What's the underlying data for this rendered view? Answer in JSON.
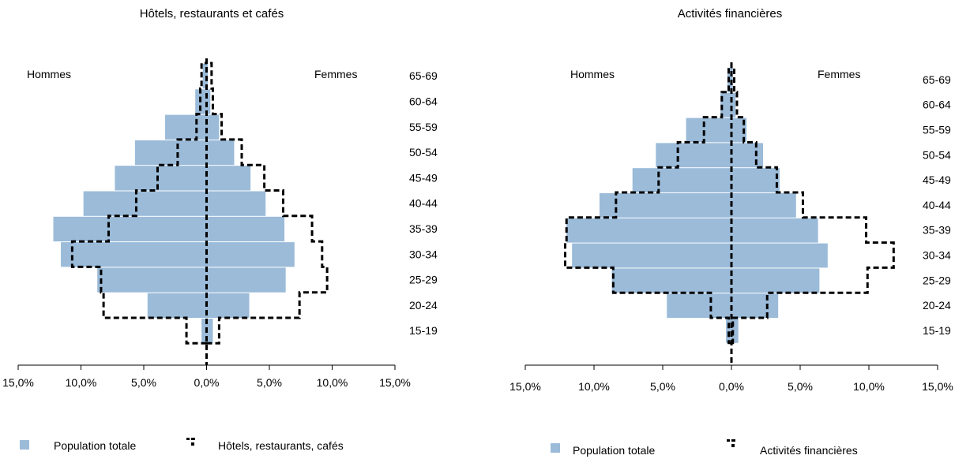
{
  "colors": {
    "population_fill": "#9bbbd9",
    "subgroup_stroke": "#000000"
  },
  "chart_data": [
    {
      "type": "bar",
      "subtype": "population-pyramid",
      "title": "Hôtels, restaurants et cafés",
      "left_label": "Hommes",
      "right_label": "Femmes",
      "categories": [
        "15-19",
        "20-24",
        "25-29",
        "30-34",
        "35-39",
        "40-44",
        "45-49",
        "50-54",
        "55-59",
        "60-64",
        "65-69"
      ],
      "x_tick_labels": [
        "15,0%",
        "10,0%",
        "5,0%",
        "0,0%",
        "5,0%",
        "10,0%",
        "15,0%"
      ],
      "xlim": [
        -15,
        15
      ],
      "units": "%",
      "series": [
        {
          "name": "Population totale",
          "style": "filled",
          "men": [
            0.4,
            4.7,
            8.7,
            11.6,
            12.2,
            9.8,
            7.3,
            5.7,
            3.3,
            0.9,
            0.3
          ],
          "women": [
            0.5,
            3.4,
            6.3,
            7.0,
            6.2,
            4.7,
            3.5,
            2.2,
            1.0,
            0.3,
            0.1
          ]
        },
        {
          "name": "Hôtels, restaurants, cafés",
          "style": "dashed-outline",
          "men": [
            1.6,
            8.2,
            8.4,
            10.7,
            7.8,
            5.6,
            3.9,
            2.3,
            0.8,
            0.5,
            0.4
          ],
          "women": [
            1.0,
            7.4,
            9.6,
            9.2,
            8.4,
            6.1,
            4.6,
            2.8,
            1.2,
            0.5,
            0.4
          ]
        }
      ],
      "legend": [
        "Population totale",
        "Hôtels, restaurants, cafés"
      ]
    },
    {
      "type": "bar",
      "subtype": "population-pyramid",
      "title": "Activités financières",
      "left_label": "Hommes",
      "right_label": "Femmes",
      "categories": [
        "15-19",
        "20-24",
        "25-29",
        "30-34",
        "35-39",
        "40-44",
        "45-49",
        "50-54",
        "55-59",
        "60-64",
        "65-69"
      ],
      "x_tick_labels": [
        "15,0%",
        "10,0%",
        "5,0%",
        "0,0%",
        "5,0%",
        "10,0%",
        "15,0%"
      ],
      "xlim": [
        -15,
        15
      ],
      "units": "%",
      "series": [
        {
          "name": "Population totale",
          "style": "filled",
          "men": [
            0.4,
            4.7,
            8.7,
            11.6,
            12.0,
            9.6,
            7.2,
            5.5,
            3.3,
            0.8,
            0.3
          ],
          "women": [
            0.5,
            3.4,
            6.4,
            7.0,
            6.3,
            4.7,
            3.5,
            2.3,
            1.1,
            0.3,
            0.1
          ]
        },
        {
          "name": "Activités financières",
          "style": "dashed-outline",
          "men": [
            0.2,
            1.5,
            8.6,
            12.1,
            12.0,
            8.4,
            5.3,
            3.9,
            2.0,
            0.7,
            0.2
          ],
          "women": [
            0.1,
            2.6,
            9.9,
            11.8,
            9.8,
            5.2,
            3.3,
            1.8,
            0.9,
            0.4,
            0.2
          ]
        }
      ],
      "legend": [
        "Population totale",
        "Activités financières"
      ]
    }
  ]
}
